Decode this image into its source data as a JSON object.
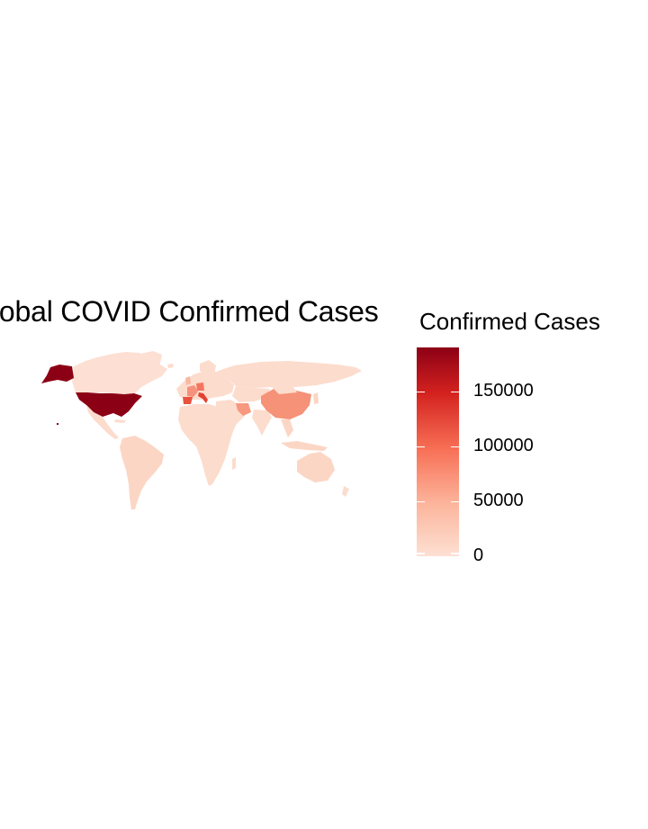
{
  "title": "lobal COVID Confirmed Cases",
  "legend": {
    "title": "Confirmed Cases",
    "labels": [
      "0",
      "50000",
      "100000",
      "150000"
    ],
    "color_low": "#fde0d3",
    "color_high": "#8c0015"
  },
  "chart_data": {
    "type": "choropleth",
    "title": "lobal COVID Confirmed Cases",
    "fill_label": "Confirmed Cases",
    "range": [
      0,
      190000
    ],
    "breaks": [
      0,
      50000,
      100000,
      150000
    ],
    "regions": [
      {
        "name": "USA",
        "value": 190000
      },
      {
        "name": "Italy",
        "value": 106000
      },
      {
        "name": "Spain",
        "value": 95000
      },
      {
        "name": "China",
        "value": 82000
      },
      {
        "name": "Germany",
        "value": 72000
      },
      {
        "name": "France",
        "value": 52000
      },
      {
        "name": "Iran",
        "value": 44000
      }
    ]
  }
}
